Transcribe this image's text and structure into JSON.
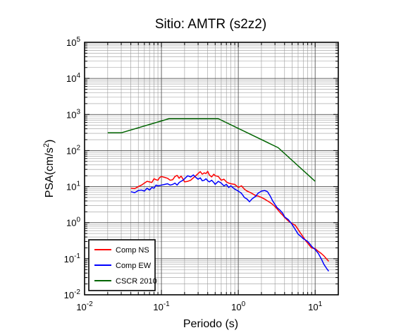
{
  "chart_data": {
    "type": "line",
    "title": "Sitio: AMTR (s2z2)",
    "xlabel": "Periodo (s)",
    "ylabel_base": "PSA(cm/s",
    "ylabel_sup": "2",
    "ylabel_close": ")",
    "x_scale": "log",
    "y_scale": "log",
    "xlim": [
      0.01,
      20
    ],
    "ylim": [
      0.01,
      100000
    ],
    "grid": true,
    "legend_position": "bottom-left",
    "x_ticks": [
      {
        "base": "10",
        "exp": "-2",
        "value": 0.01
      },
      {
        "base": "10",
        "exp": "-1",
        "value": 0.1
      },
      {
        "base": "10",
        "exp": "0",
        "value": 1
      },
      {
        "base": "10",
        "exp": "1",
        "value": 10
      }
    ],
    "y_ticks": [
      {
        "base": "10",
        "exp": "-2",
        "value": 0.01
      },
      {
        "base": "10",
        "exp": "-1",
        "value": 0.1
      },
      {
        "base": "10",
        "exp": "0",
        "value": 1
      },
      {
        "base": "10",
        "exp": "1",
        "value": 10
      },
      {
        "base": "10",
        "exp": "2",
        "value": 100
      },
      {
        "base": "10",
        "exp": "3",
        "value": 1000
      },
      {
        "base": "10",
        "exp": "4",
        "value": 10000
      },
      {
        "base": "10",
        "exp": "5",
        "value": 100000
      }
    ],
    "series": [
      {
        "name": "Comp NS",
        "color": "#ff0000",
        "points": [
          [
            0.04,
            9.0
          ],
          [
            0.045,
            8.8
          ],
          [
            0.05,
            10.0
          ],
          [
            0.055,
            11.0
          ],
          [
            0.06,
            12.5
          ],
          [
            0.065,
            14.0
          ],
          [
            0.07,
            13.5
          ],
          [
            0.075,
            13.0
          ],
          [
            0.08,
            16.5
          ],
          [
            0.085,
            15.5
          ],
          [
            0.09,
            15.0
          ],
          [
            0.095,
            18.0
          ],
          [
            0.1,
            19.0
          ],
          [
            0.11,
            18.0
          ],
          [
            0.12,
            17.0
          ],
          [
            0.13,
            15.0
          ],
          [
            0.14,
            15.5
          ],
          [
            0.15,
            19.0
          ],
          [
            0.16,
            20.5
          ],
          [
            0.17,
            17.0
          ],
          [
            0.18,
            19.5
          ],
          [
            0.19,
            16.5
          ],
          [
            0.2,
            13.5
          ],
          [
            0.22,
            14.0
          ],
          [
            0.24,
            15.0
          ],
          [
            0.26,
            17.5
          ],
          [
            0.28,
            20.0
          ],
          [
            0.3,
            23.0
          ],
          [
            0.32,
            26.0
          ],
          [
            0.34,
            22.0
          ],
          [
            0.36,
            24.0
          ],
          [
            0.38,
            23.0
          ],
          [
            0.4,
            26.5
          ],
          [
            0.42,
            21.0
          ],
          [
            0.45,
            18.5
          ],
          [
            0.48,
            22.0
          ],
          [
            0.5,
            20.0
          ],
          [
            0.55,
            19.0
          ],
          [
            0.6,
            15.0
          ],
          [
            0.65,
            16.0
          ],
          [
            0.7,
            13.5
          ],
          [
            0.75,
            12.5
          ],
          [
            0.8,
            12.0
          ],
          [
            0.9,
            11.5
          ],
          [
            1.0,
            9.5
          ],
          [
            1.1,
            10.5
          ],
          [
            1.2,
            8.5
          ],
          [
            1.3,
            7.5
          ],
          [
            1.4,
            7.0
          ],
          [
            1.5,
            6.5
          ],
          [
            1.6,
            6.0
          ],
          [
            1.7,
            5.5
          ],
          [
            1.8,
            5.5
          ],
          [
            2.0,
            5.0
          ],
          [
            2.2,
            4.5
          ],
          [
            2.4,
            4.0
          ],
          [
            2.6,
            3.6
          ],
          [
            2.8,
            3.2
          ],
          [
            3.0,
            2.8
          ],
          [
            3.2,
            2.4
          ],
          [
            3.5,
            1.9
          ],
          [
            3.8,
            1.6
          ],
          [
            4.0,
            1.4
          ],
          [
            4.5,
            1.1
          ],
          [
            5.0,
            0.95
          ],
          [
            5.5,
            0.85
          ],
          [
            6.0,
            0.65
          ],
          [
            6.5,
            0.5
          ],
          [
            7.0,
            0.4
          ],
          [
            7.5,
            0.32
          ],
          [
            8.0,
            0.27
          ],
          [
            8.5,
            0.23
          ],
          [
            9.0,
            0.2
          ],
          [
            10.0,
            0.19
          ],
          [
            11.0,
            0.16
          ],
          [
            12.0,
            0.14
          ],
          [
            13.0,
            0.12
          ],
          [
            14.0,
            0.1
          ],
          [
            15.0,
            0.085
          ]
        ]
      },
      {
        "name": "Comp EW",
        "color": "#0000ff",
        "points": [
          [
            0.04,
            7.2
          ],
          [
            0.045,
            6.8
          ],
          [
            0.05,
            7.8
          ],
          [
            0.055,
            8.0
          ],
          [
            0.06,
            7.5
          ],
          [
            0.065,
            9.0
          ],
          [
            0.07,
            8.0
          ],
          [
            0.075,
            9.5
          ],
          [
            0.08,
            9.0
          ],
          [
            0.085,
            11.0
          ],
          [
            0.09,
            10.5
          ],
          [
            0.1,
            11.0
          ],
          [
            0.11,
            11.5
          ],
          [
            0.12,
            12.0
          ],
          [
            0.13,
            11.0
          ],
          [
            0.14,
            11.5
          ],
          [
            0.15,
            12.5
          ],
          [
            0.16,
            11.0
          ],
          [
            0.17,
            13.0
          ],
          [
            0.18,
            14.0
          ],
          [
            0.19,
            15.0
          ],
          [
            0.2,
            16.5
          ],
          [
            0.22,
            20.0
          ],
          [
            0.24,
            18.5
          ],
          [
            0.26,
            21.0
          ],
          [
            0.28,
            18.0
          ],
          [
            0.3,
            16.0
          ],
          [
            0.32,
            17.5
          ],
          [
            0.34,
            14.5
          ],
          [
            0.36,
            15.0
          ],
          [
            0.38,
            16.5
          ],
          [
            0.4,
            14.5
          ],
          [
            0.42,
            13.5
          ],
          [
            0.45,
            15.0
          ],
          [
            0.48,
            13.0
          ],
          [
            0.5,
            11.5
          ],
          [
            0.55,
            14.0
          ],
          [
            0.6,
            12.5
          ],
          [
            0.65,
            10.5
          ],
          [
            0.7,
            11.5
          ],
          [
            0.75,
            9.5
          ],
          [
            0.8,
            10.5
          ],
          [
            0.9,
            8.5
          ],
          [
            1.0,
            7.5
          ],
          [
            1.1,
            6.5
          ],
          [
            1.2,
            5.0
          ],
          [
            1.3,
            4.5
          ],
          [
            1.4,
            3.8
          ],
          [
            1.5,
            4.5
          ],
          [
            1.6,
            5.0
          ],
          [
            1.7,
            5.5
          ],
          [
            1.8,
            6.5
          ],
          [
            2.0,
            7.5
          ],
          [
            2.2,
            7.8
          ],
          [
            2.4,
            7.2
          ],
          [
            2.6,
            5.5
          ],
          [
            2.8,
            4.0
          ],
          [
            3.0,
            3.2
          ],
          [
            3.2,
            2.6
          ],
          [
            3.5,
            2.2
          ],
          [
            3.8,
            1.8
          ],
          [
            4.0,
            1.45
          ],
          [
            4.5,
            1.2
          ],
          [
            5.0,
            0.9
          ],
          [
            5.5,
            0.65
          ],
          [
            6.0,
            0.48
          ],
          [
            6.5,
            0.42
          ],
          [
            7.0,
            0.36
          ],
          [
            7.5,
            0.33
          ],
          [
            8.0,
            0.3
          ],
          [
            8.5,
            0.26
          ],
          [
            9.0,
            0.22
          ],
          [
            10.0,
            0.18
          ],
          [
            11.0,
            0.14
          ],
          [
            12.0,
            0.1
          ],
          [
            13.0,
            0.07
          ],
          [
            14.0,
            0.055
          ],
          [
            15.0,
            0.045
          ]
        ]
      },
      {
        "name": "CSCR 2010",
        "color": "#006400",
        "points": [
          [
            0.02,
            310
          ],
          [
            0.03,
            310
          ],
          [
            0.125,
            760
          ],
          [
            0.55,
            760
          ],
          [
            3.3,
            120
          ],
          [
            10.0,
            14
          ]
        ]
      }
    ]
  }
}
